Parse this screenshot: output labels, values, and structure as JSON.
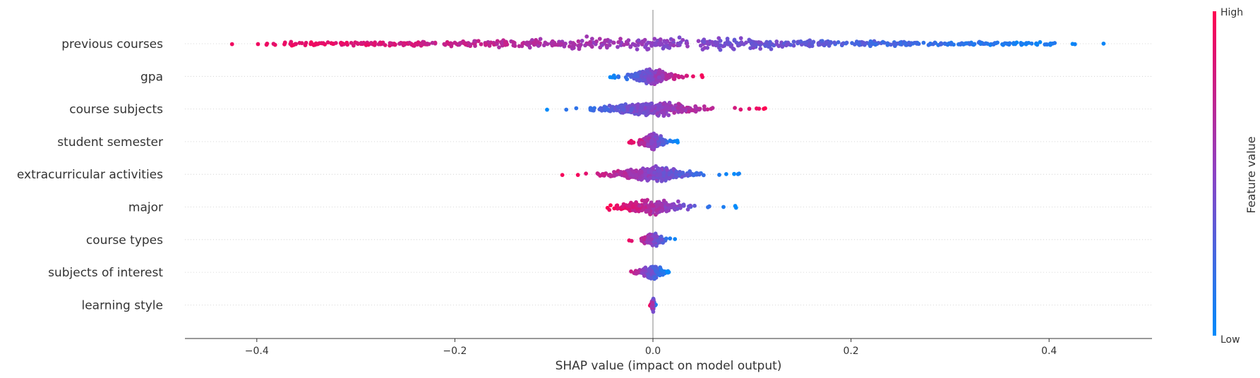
{
  "chart_data": {
    "type": "scatter",
    "subtype": "shap-beeswarm",
    "title": "",
    "xlabel": "SHAP value (impact on model output)",
    "xlim": [
      -0.47,
      0.5
    ],
    "x_ticks": [
      {
        "value": -0.4,
        "label": "−0.4"
      },
      {
        "value": -0.2,
        "label": "−0.2"
      },
      {
        "value": 0.0,
        "label": "0.0"
      },
      {
        "value": 0.2,
        "label": "0.2"
      },
      {
        "value": 0.4,
        "label": "0.4"
      }
    ],
    "colorbar": {
      "title": "Feature value",
      "high_label": "High",
      "low_label": "Low",
      "high_color": "#ff0051",
      "low_color": "#008bfb",
      "mid_color": "#8c42c4"
    },
    "features": [
      {
        "name": "previous courses",
        "min": -0.425,
        "max": 0.455,
        "high_side": "negative"
      },
      {
        "name": "gpa",
        "min": -0.047,
        "max": 0.05,
        "high_side": "positive"
      },
      {
        "name": "course subjects",
        "min": -0.11,
        "max": 0.117,
        "high_side": "positive"
      },
      {
        "name": "student semester",
        "min": -0.026,
        "max": 0.025,
        "high_side": "negative"
      },
      {
        "name": "extracurricular activities",
        "min": -0.094,
        "max": 0.09,
        "high_side": "negative"
      },
      {
        "name": "major",
        "min": -0.047,
        "max": 0.084,
        "high_side": "negative"
      },
      {
        "name": "course types",
        "min": -0.026,
        "max": 0.025,
        "high_side": "negative"
      },
      {
        "name": "subjects of interest",
        "min": -0.032,
        "max": 0.016,
        "high_side": "negative"
      },
      {
        "name": "learning style",
        "min": -0.003,
        "max": 0.003,
        "high_side": "negative"
      }
    ]
  }
}
